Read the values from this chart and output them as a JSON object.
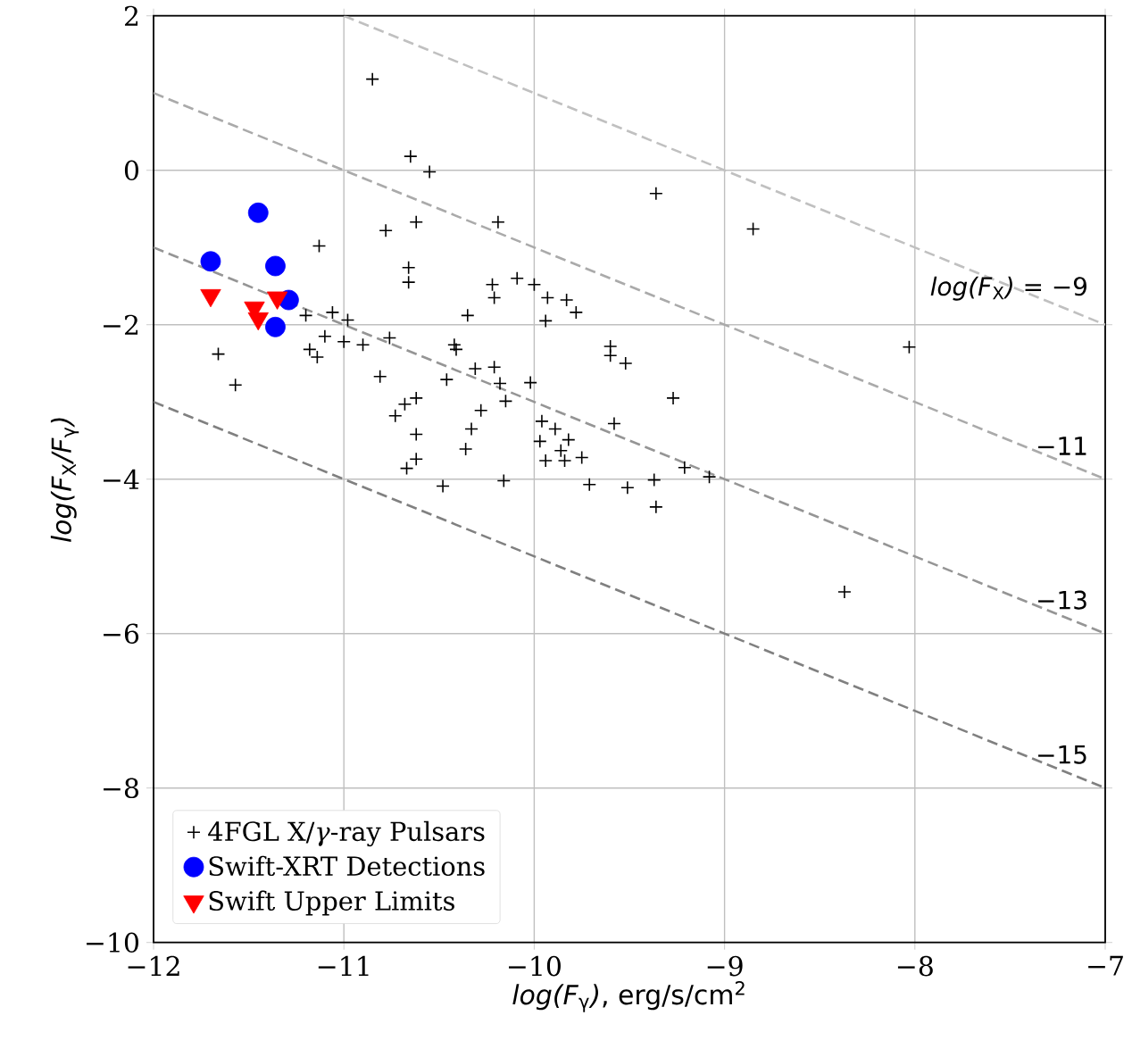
{
  "chart_data": {
    "type": "scatter",
    "xlabel": "*log(F*$_{γ}$*)*, erg/s/cm$^{2}$",
    "ylabel": "*log(F*$_{X}$*/F*$_{γ}$*)*",
    "xlim": [
      -12,
      -7
    ],
    "ylim": [
      -10,
      2
    ],
    "xticks": [
      {
        "value": -12,
        "label": "−12"
      },
      {
        "value": -11,
        "label": "−11"
      },
      {
        "value": -10,
        "label": "−10"
      },
      {
        "value": -9,
        "label": "−9"
      },
      {
        "value": -8,
        "label": "−8"
      },
      {
        "value": -7,
        "label": "−7"
      }
    ],
    "yticks": [
      {
        "value": -10,
        "label": "−10"
      },
      {
        "value": -8,
        "label": "−8"
      },
      {
        "value": -6,
        "label": "−6"
      },
      {
        "value": -4,
        "label": "−4"
      },
      {
        "value": -2,
        "label": "−2"
      },
      {
        "value": 0,
        "label": "0"
      },
      {
        "value": 2,
        "label": "2"
      }
    ],
    "grid": true,
    "legend": "bottom left",
    "series": [
      {
        "type": "line",
        "name": "*log(F*$_{X}$*)* = −9",
        "color": "#c0c0c0",
        "line_style": "dashed",
        "x": [
          -11,
          -7
        ],
        "values": [
          2,
          -2
        ]
      },
      {
        "type": "line",
        "name": "−11",
        "color": "#aaaaaa",
        "line_style": "dashed",
        "x": [
          -12,
          -7
        ],
        "values": [
          1,
          -4
        ]
      },
      {
        "type": "line",
        "name": "−13",
        "color": "#959595",
        "line_style": "dashed",
        "x": [
          -12,
          -7
        ],
        "values": [
          -1,
          -6
        ]
      },
      {
        "type": "line",
        "name": "−15",
        "color": "#808080",
        "line_style": "dashed",
        "x": [
          -12,
          -7
        ],
        "values": [
          -3,
          -8
        ]
      },
      {
        "name": "4FGL X/*γ*-ray Pulsars",
        "color": "#000000",
        "marker": "cross",
        "x": [
          -10.85,
          -10.65,
          -10.55,
          -10.62,
          -10.78,
          -11.13,
          -10.19,
          -10.66,
          -10.66,
          -10.09,
          -10.0,
          -10.22,
          -10.21,
          -9.93,
          -9.83,
          -9.78,
          -9.94,
          -10.35,
          -11.2,
          -11.06,
          -10.98,
          -11.1,
          -11.0,
          -10.9,
          -10.76,
          -11.18,
          -11.14,
          -11.66,
          -11.57,
          -10.42,
          -10.41,
          -10.81,
          -10.46,
          -10.31,
          -10.21,
          -10.18,
          -10.15,
          -10.02,
          -10.62,
          -10.68,
          -10.73,
          -10.62,
          -10.62,
          -10.67,
          -10.28,
          -10.33,
          -10.36,
          -10.48,
          -10.16,
          -9.96,
          -9.97,
          -9.89,
          -9.94,
          -9.86,
          -9.84,
          -9.82,
          -9.75,
          -9.71,
          -9.6,
          -9.6,
          -9.58,
          -9.52,
          -9.36,
          -8.85,
          -8.03,
          -9.27,
          -9.21,
          -9.08,
          -9.37,
          -9.36,
          -9.51,
          -8.37
        ],
        "values": [
          1.18,
          0.18,
          -0.02,
          -0.67,
          -0.78,
          -0.98,
          -0.67,
          -1.26,
          -1.45,
          -1.4,
          -1.48,
          -1.48,
          -1.65,
          -1.65,
          -1.68,
          -1.84,
          -1.95,
          -1.88,
          -1.88,
          -1.84,
          -1.94,
          -2.15,
          -2.22,
          -2.26,
          -2.17,
          -2.32,
          -2.42,
          -2.38,
          -2.78,
          -2.26,
          -2.32,
          -2.67,
          -2.71,
          -2.57,
          -2.55,
          -2.76,
          -2.99,
          -2.75,
          -2.95,
          -3.03,
          -3.18,
          -3.42,
          -3.74,
          -3.86,
          -3.11,
          -3.35,
          -3.61,
          -4.09,
          -4.02,
          -3.25,
          -3.51,
          -3.35,
          -3.76,
          -3.63,
          -3.76,
          -3.49,
          -3.72,
          -4.07,
          -2.28,
          -2.4,
          -3.28,
          -2.5,
          -0.3,
          -0.76,
          -2.29,
          -2.95,
          -3.85,
          -3.97,
          -4.01,
          -4.36,
          -4.11,
          -5.46
        ]
      },
      {
        "name": "Swift-XRT Detections",
        "color": "#0000ff",
        "marker": "circle",
        "x": [
          -11.7,
          -11.45,
          -11.36,
          -11.29,
          -11.36
        ],
        "values": [
          -1.18,
          -0.55,
          -1.24,
          -1.68,
          -2.03
        ]
      },
      {
        "name": "Swift Upper Limits",
        "color": "#ff0000",
        "marker": "triangle",
        "x": [
          -11.7,
          -11.47,
          -11.45,
          -11.35
        ],
        "values": [
          -1.62,
          -1.78,
          -1.92,
          -1.65
        ]
      }
    ]
  }
}
